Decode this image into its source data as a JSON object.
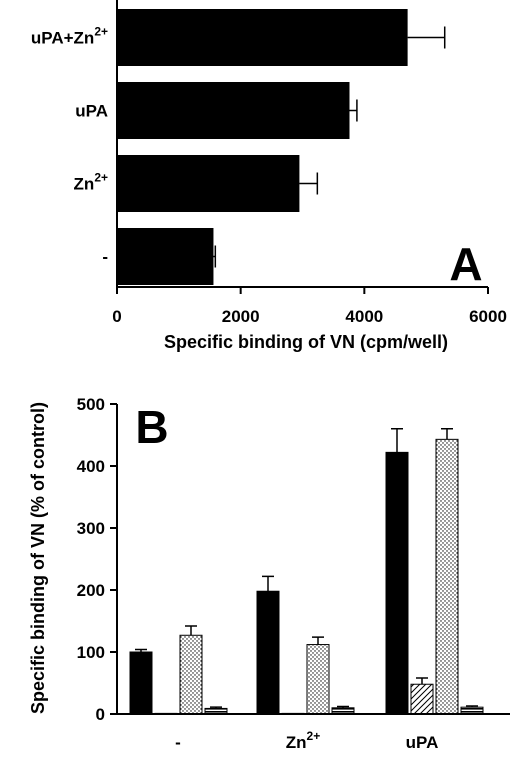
{
  "chart_data": [
    {
      "type": "bar",
      "orientation": "horizontal",
      "panel_label": "A",
      "title": "",
      "xlabel": "Specific binding of VN (cpm/well)",
      "ylabel": "",
      "xlim": [
        0,
        6000
      ],
      "xticks": [
        0,
        2000,
        4000,
        6000
      ],
      "xtick_labels": [
        "0",
        "2000",
        "4000",
        "6000"
      ],
      "grid": false,
      "legend": "none",
      "bars": [
        {
          "label": "uPA+Zn",
          "sup": "2+",
          "value": 4700,
          "error": 600
        },
        {
          "label": "uPA",
          "sup": "",
          "value": 3760,
          "error": 120
        },
        {
          "label": "Zn",
          "sup": "2+",
          "value": 2950,
          "error": 290
        },
        {
          "label": "-",
          "sup": "",
          "value": 1560,
          "error": 30
        }
      ],
      "colors": {
        "bar": "#000000"
      }
    },
    {
      "type": "bar",
      "orientation": "vertical",
      "panel_label": "B",
      "title": "",
      "xlabel": "",
      "ylabel": "Specific binding of VN (% of control)",
      "ylim": [
        0,
        500
      ],
      "yticks": [
        0,
        100,
        200,
        300,
        400,
        500
      ],
      "ytick_labels": [
        "0",
        "100",
        "200",
        "300",
        "400",
        "500"
      ],
      "grid": false,
      "legend": "none",
      "categories": [
        {
          "label": "-",
          "sup": ""
        },
        {
          "label": "Zn",
          "sup": "2+"
        },
        {
          "label": "uPA",
          "sup": ""
        }
      ],
      "series": [
        {
          "pattern": "solid",
          "values": [
            100,
            198,
            422
          ],
          "errors": [
            4,
            24,
            38
          ]
        },
        {
          "pattern": "hatched",
          "values": [
            1,
            1,
            48
          ],
          "errors": [
            0,
            0,
            10
          ]
        },
        {
          "pattern": "dotted",
          "values": [
            127,
            112,
            443
          ],
          "errors": [
            15,
            12,
            17
          ]
        },
        {
          "pattern": "striped",
          "values": [
            9,
            10,
            11
          ],
          "errors": [
            2,
            2,
            2
          ]
        }
      ],
      "colors": {
        "bar": "#000000",
        "fill_light": "#ffffff"
      }
    }
  ]
}
